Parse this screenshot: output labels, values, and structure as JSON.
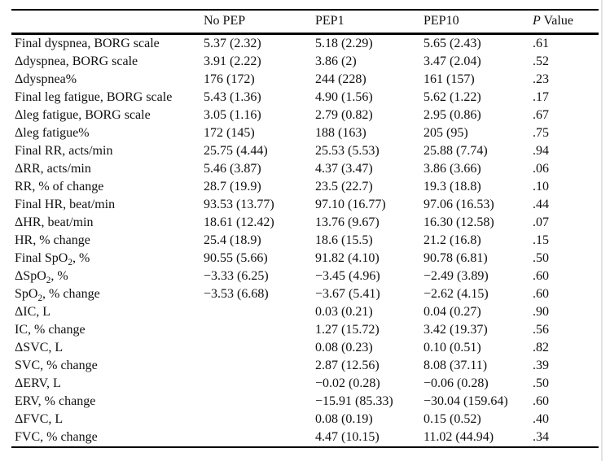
{
  "table": {
    "header": {
      "col_label": "",
      "col1": "No PEP",
      "col2": "PEP1",
      "col3": "PEP10",
      "p_italic": "P",
      "p_rest": " Value"
    },
    "rows": [
      {
        "label": "Final dyspnea, BORG scale",
        "c1": "5.37 (2.32)",
        "c2": "5.18 (2.29)",
        "c3": "5.65 (2.43)",
        "p": ".61"
      },
      {
        "label": "Δdyspnea, BORG scale",
        "c1": "3.91 (2.22)",
        "c2": "3.86 (2)",
        "c3": "3.47 (2.04)",
        "p": ".52"
      },
      {
        "label": "Δdyspnea%",
        "c1": "176 (172)",
        "c2": "244 (228)",
        "c3": "161 (157)",
        "p": ".23"
      },
      {
        "label": "Final leg fatigue, BORG scale",
        "c1": "5.43 (1.36)",
        "c2": "4.90 (1.56)",
        "c3": "5.62 (1.22)",
        "p": ".17"
      },
      {
        "label": "Δleg fatigue, BORG scale",
        "c1": "3.05 (1.16)",
        "c2": "2.79 (0.82)",
        "c3": "2.95 (0.86)",
        "p": ".67"
      },
      {
        "label": "Δleg fatigue%",
        "c1": "172 (145)",
        "c2": "188 (163)",
        "c3": "205 (95)",
        "p": ".75"
      },
      {
        "label": "Final RR, acts/min",
        "c1": "25.75 (4.44)",
        "c2": "25.53 (5.53)",
        "c3": "25.88 (7.74)",
        "p": ".94"
      },
      {
        "label": "ΔRR, acts/min",
        "c1": "5.46 (3.87)",
        "c2": "4.37 (3.47)",
        "c3": "3.86 (3.66)",
        "p": ".06"
      },
      {
        "label": "RR, % of change",
        "c1": "28.7 (19.9)",
        "c2": "23.5 (22.7)",
        "c3": "19.3 (18.8)",
        "p": ".10"
      },
      {
        "label": "Final HR, beat/min",
        "c1": "93.53 (13.77)",
        "c2": "97.10 (16.77)",
        "c3": "97.06 (16.53)",
        "p": ".44"
      },
      {
        "label": "ΔHR, beat/min",
        "c1": "18.61 (12.42)",
        "c2": "13.76 (9.67)",
        "c3": "16.30 (12.58)",
        "p": ".07"
      },
      {
        "label": "HR, % change",
        "c1": "25.4 (18.9)",
        "c2": "18.6 (15.5)",
        "c3": "21.2 (16.8)",
        "p": ".15"
      },
      {
        "label_pre": "Final SpO",
        "label_sub": "2",
        "label_post": ", %",
        "c1": "90.55 (5.66)",
        "c2": "91.82 (4.10)",
        "c3": "90.78 (6.81)",
        "p": ".50"
      },
      {
        "label_pre": "ΔSpO",
        "label_sub": "2",
        "label_post": ", %",
        "c1": "−3.33 (6.25)",
        "c2": "−3.45 (4.96)",
        "c3": "−2.49 (3.89)",
        "p": ".60"
      },
      {
        "label_pre": "SpO",
        "label_sub": "2",
        "label_post": ", % change",
        "c1": "−3.53 (6.68)",
        "c2": "−3.67 (5.41)",
        "c3": "−2.62 (4.15)",
        "p": ".60"
      },
      {
        "label": "ΔIC, L",
        "c1": "",
        "c2": "0.03 (0.21)",
        "c3": "0.04 (0.27)",
        "p": ".90"
      },
      {
        "label": "IC, % change",
        "c1": "",
        "c2": "1.27 (15.72)",
        "c3": "3.42 (19.37)",
        "p": ".56"
      },
      {
        "label": "ΔSVC, L",
        "c1": "",
        "c2": "0.08 (0.23)",
        "c3": "0.10 (0.51)",
        "p": ".82"
      },
      {
        "label": "SVC, % change",
        "c1": "",
        "c2": "2.87 (12.56)",
        "c3": "8.08 (37.11)",
        "p": ".39"
      },
      {
        "label": "ΔERV, L",
        "c1": "",
        "c2": "−0.02 (0.28)",
        "c3": "−0.06 (0.28)",
        "p": ".50"
      },
      {
        "label": "ERV, % change",
        "c1": "",
        "c2": "−15.91 (85.33)",
        "c3": "−30.04 (159.64)",
        "p": ".60"
      },
      {
        "label": "ΔFVC, L",
        "c1": "",
        "c2": "0.08 (0.19)",
        "c3": "0.15 (0.52)",
        "p": ".40"
      },
      {
        "label": "FVC, % change",
        "c1": "",
        "c2": "4.47 (10.15)",
        "c3": "11.02 (44.94)",
        "p": ".34"
      }
    ]
  }
}
